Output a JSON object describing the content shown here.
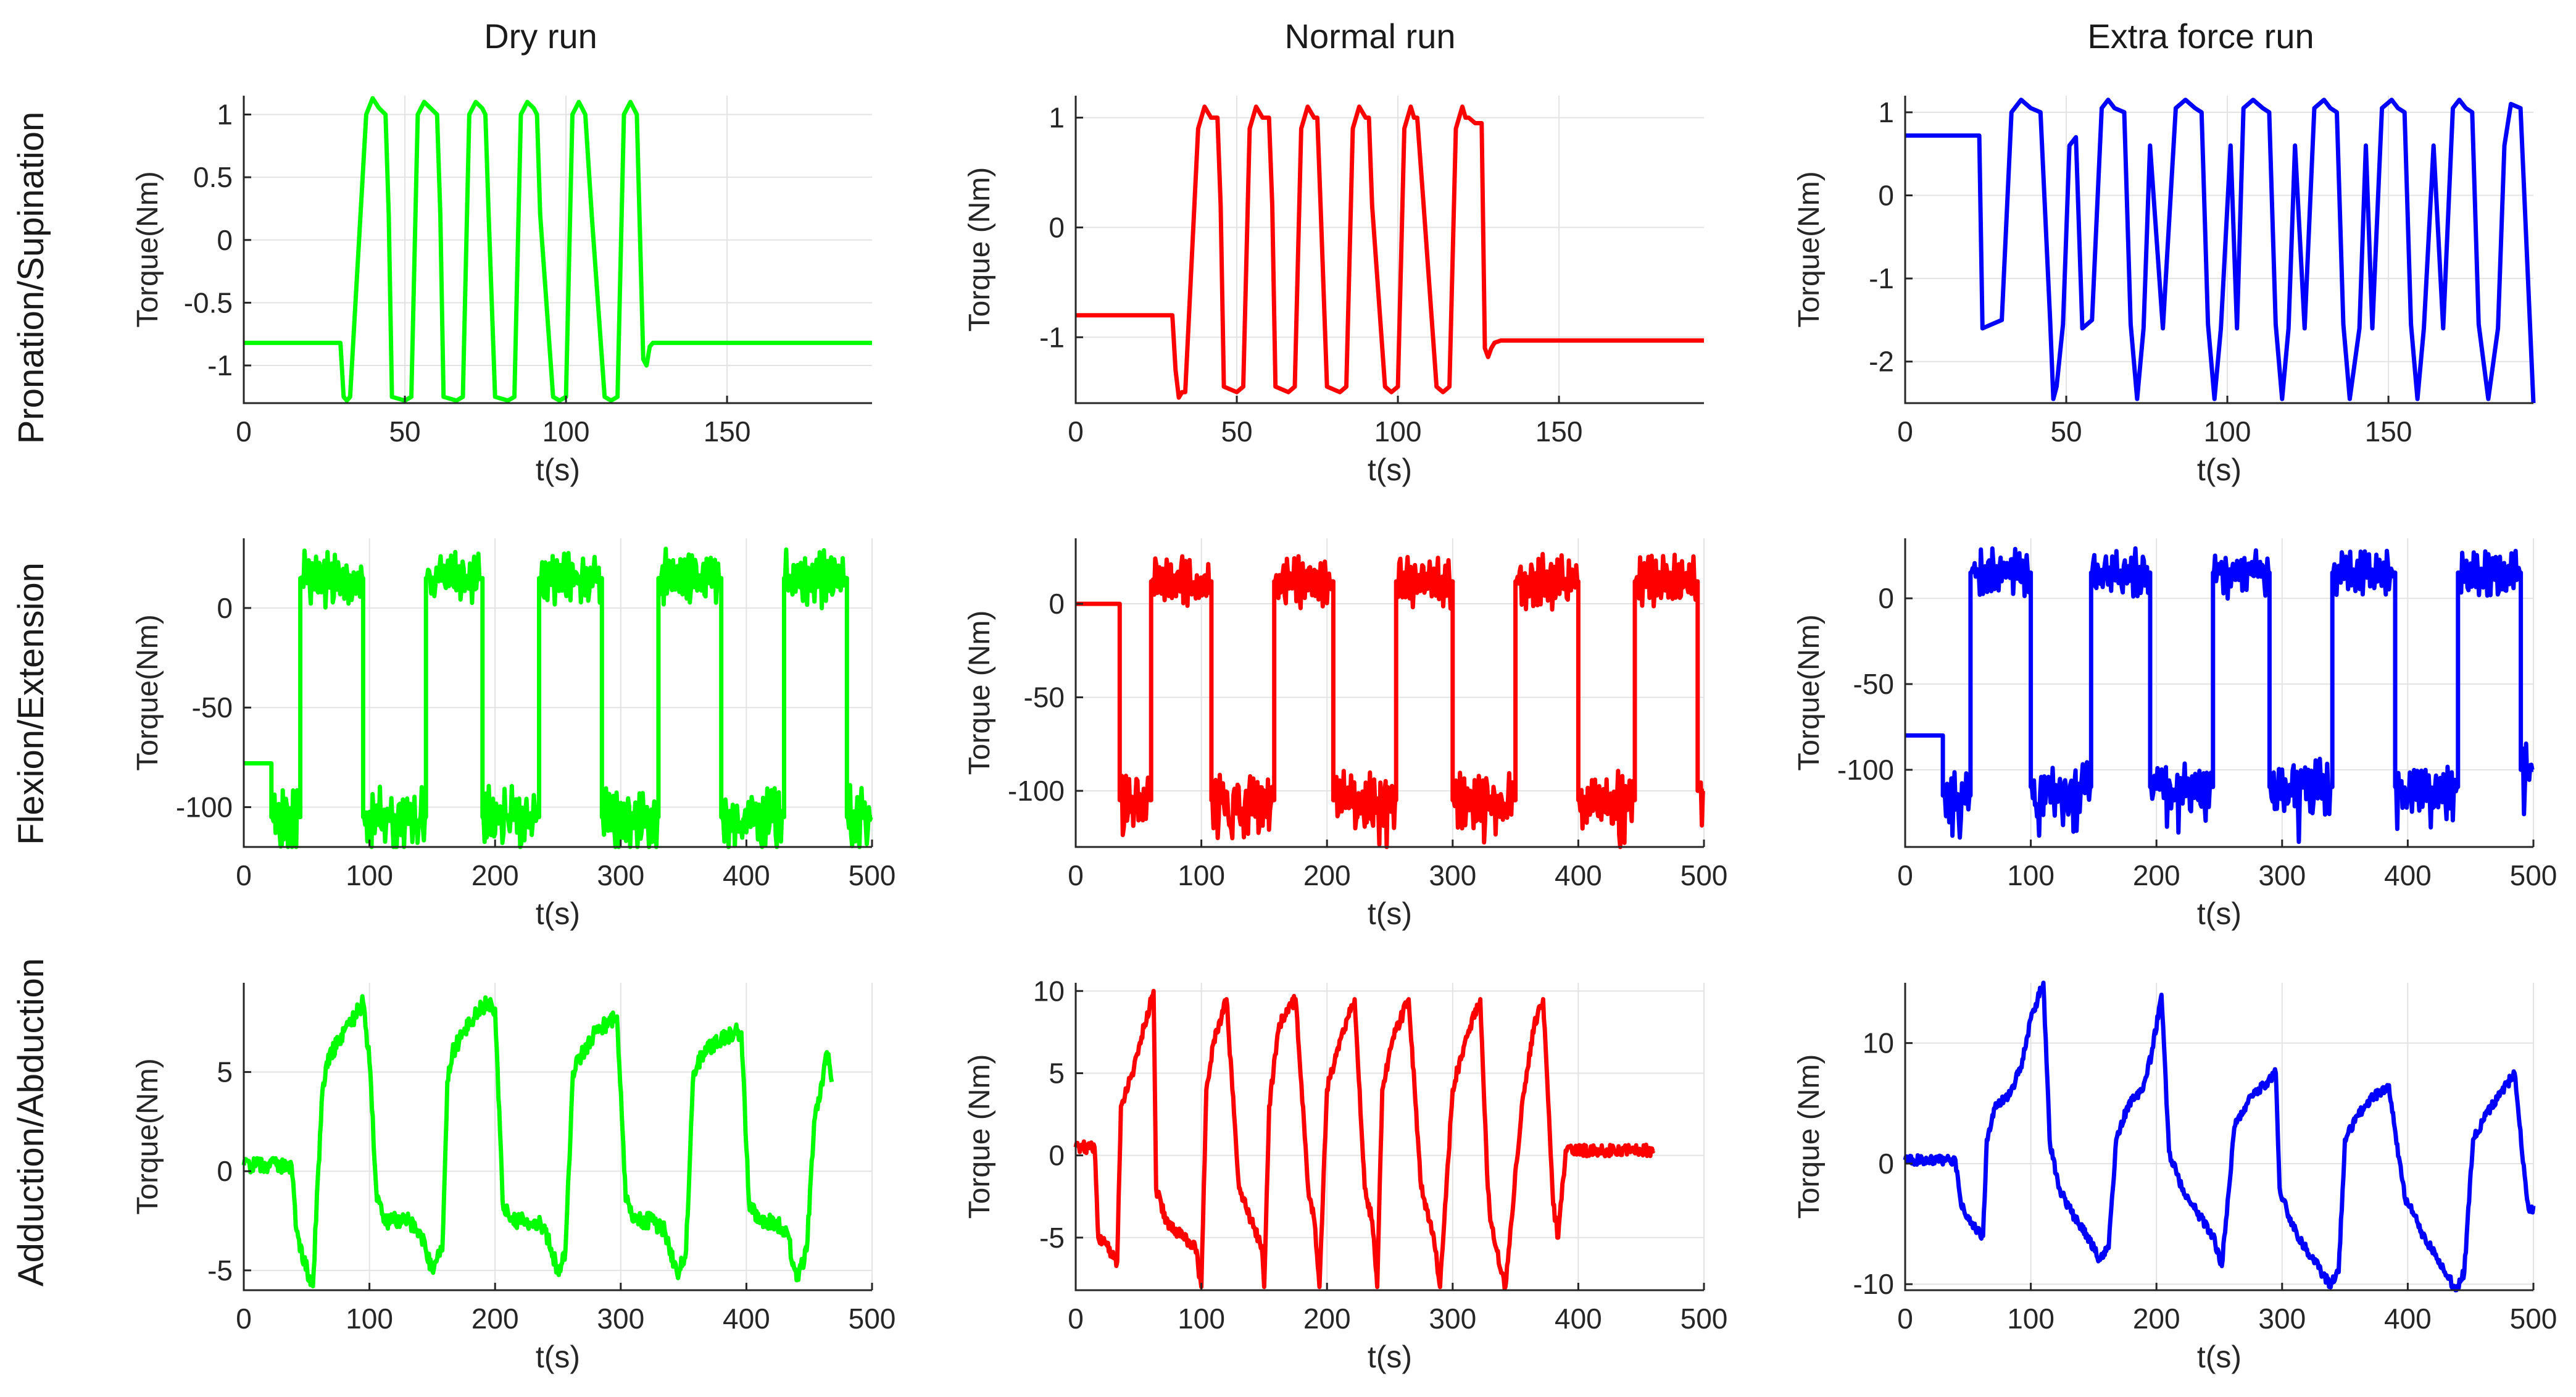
{
  "chart_data": [
    {
      "type": "line",
      "row_label": "Pronation/Supination",
      "col_label": "Dry run",
      "color": "#00ff00",
      "ylabel": "Torque(Nm)",
      "xlabel": "t(s)",
      "xlim": [
        0,
        195
      ],
      "ylim": [
        -1.3,
        1.15
      ],
      "xticks": [
        0,
        50,
        100,
        150
      ],
      "yticks": [
        1,
        0.5,
        0,
        -0.5,
        -1
      ],
      "ytick_labels": [
        "1",
        "0.5",
        "0",
        "-0.5",
        "-1"
      ],
      "x": [
        0,
        30,
        31,
        32,
        33,
        38,
        40,
        42,
        44,
        45,
        46,
        50,
        52,
        54,
        56,
        58,
        60,
        61,
        62,
        66,
        68,
        70,
        72,
        74,
        75,
        76,
        78,
        82,
        84,
        86,
        88,
        90,
        91,
        92,
        96,
        98,
        100,
        102,
        104,
        105,
        106,
        108,
        112,
        114,
        116,
        118,
        120,
        121,
        122,
        124,
        125,
        126,
        127,
        128,
        195
      ],
      "y": [
        -0.82,
        -0.82,
        -1.25,
        -1.28,
        -1.25,
        1.0,
        1.13,
        1.05,
        1.0,
        0.2,
        -1.25,
        -1.28,
        -1.25,
        1.0,
        1.1,
        1.05,
        1.0,
        0.2,
        -1.25,
        -1.28,
        -1.25,
        1.0,
        1.1,
        1.05,
        1.0,
        0.2,
        -1.25,
        -1.28,
        -1.25,
        1.0,
        1.1,
        1.05,
        1.0,
        0.2,
        -1.25,
        -1.28,
        -1.25,
        1.0,
        1.1,
        1.05,
        1.0,
        0.2,
        -1.25,
        -1.28,
        -1.25,
        1.0,
        1.1,
        1.05,
        1.0,
        -0.95,
        -1.0,
        -0.85,
        -0.82,
        -0.82,
        -0.82
      ]
    },
    {
      "type": "line",
      "row_label": "Pronation/Supination",
      "col_label": "Normal run",
      "color": "#ff0000",
      "ylabel": "Torque (Nm)",
      "xlabel": "t(s)",
      "xlim": [
        0,
        195
      ],
      "ylim": [
        -1.6,
        1.2
      ],
      "xticks": [
        0,
        50,
        100,
        150
      ],
      "yticks": [
        1,
        0,
        -1
      ],
      "ytick_labels": [
        "1",
        "0",
        "-1"
      ],
      "x": [
        0,
        30,
        31,
        32,
        33,
        34,
        38,
        40,
        42,
        44,
        45,
        46,
        50,
        52,
        54,
        56,
        58,
        60,
        61,
        62,
        66,
        68,
        70,
        72,
        74,
        75,
        76,
        78,
        82,
        84,
        86,
        88,
        90,
        91,
        92,
        96,
        98,
        100,
        102,
        104,
        105,
        106,
        108,
        112,
        114,
        116,
        118,
        120,
        121,
        122,
        124,
        126,
        127,
        128,
        129,
        130,
        132,
        135,
        195
      ],
      "y": [
        -0.8,
        -0.8,
        -1.3,
        -1.55,
        -1.5,
        -1.5,
        0.9,
        1.1,
        1.0,
        1.0,
        0.2,
        -1.45,
        -1.5,
        -1.45,
        0.9,
        1.1,
        1.0,
        1.0,
        0.2,
        -1.45,
        -1.5,
        -1.45,
        0.9,
        1.1,
        1.0,
        1.0,
        0.2,
        -1.45,
        -1.5,
        -1.45,
        0.9,
        1.1,
        1.0,
        1.0,
        0.2,
        -1.45,
        -1.5,
        -1.45,
        0.9,
        1.1,
        1.0,
        1.0,
        0.2,
        -1.45,
        -1.5,
        -1.45,
        0.9,
        1.1,
        1.0,
        1.0,
        0.95,
        0.95,
        -1.1,
        -1.18,
        -1.1,
        -1.05,
        -1.03,
        -1.03,
        -1.03
      ]
    },
    {
      "type": "line",
      "row_label": "Pronation/Supination",
      "col_label": "Extra force run",
      "color": "#0000ff",
      "ylabel": "Torque(Nm)",
      "xlabel": "t(s)",
      "xlim": [
        0,
        195
      ],
      "ylim": [
        -2.5,
        1.2
      ],
      "xticks": [
        0,
        50,
        100,
        150
      ],
      "yticks": [
        1,
        0,
        -1,
        -2
      ],
      "ytick_labels": [
        "1",
        "0",
        "-1",
        "-2"
      ],
      "x": [
        0,
        23,
        24,
        27,
        30,
        33,
        36,
        39,
        42,
        45,
        46,
        47,
        49,
        51,
        53,
        55,
        58,
        61,
        63,
        65,
        68,
        70,
        72,
        74,
        76,
        80,
        84,
        87,
        90,
        92,
        94,
        96,
        98,
        101,
        103,
        105,
        108,
        111,
        113,
        115,
        117,
        119,
        121,
        124,
        127,
        130,
        132,
        134,
        136,
        138,
        141,
        143,
        145,
        148,
        151,
        153,
        155,
        157,
        159,
        161,
        164,
        167,
        170,
        172,
        174,
        176,
        178,
        181,
        184,
        186,
        188,
        191,
        195
      ],
      "y": [
        0.72,
        0.72,
        -1.6,
        -1.55,
        -1.5,
        1.0,
        1.15,
        1.05,
        1.0,
        -1.5,
        -2.45,
        -2.3,
        -1.55,
        0.6,
        0.7,
        -1.6,
        -1.5,
        1.05,
        1.15,
        1.05,
        1.0,
        -1.55,
        -2.45,
        -1.6,
        0.6,
        -1.6,
        1.05,
        1.15,
        1.05,
        1.0,
        -1.55,
        -2.45,
        -1.6,
        0.6,
        -1.6,
        1.05,
        1.15,
        1.05,
        1.0,
        -1.55,
        -2.45,
        -1.6,
        0.6,
        -1.6,
        1.05,
        1.15,
        1.05,
        1.0,
        -1.55,
        -2.45,
        -1.6,
        0.6,
        -1.6,
        1.05,
        1.15,
        1.05,
        1.0,
        -1.55,
        -2.45,
        -1.6,
        0.6,
        -1.6,
        1.05,
        1.15,
        1.05,
        1.0,
        -1.55,
        -2.45,
        -1.6,
        0.6,
        1.1,
        1.05,
        -2.5
      ]
    },
    {
      "type": "line",
      "row_label": "Flexion/Extension",
      "col_label": "Dry run",
      "color": "#00ff00",
      "ylabel": "Torque(Nm)",
      "xlabel": "t(s)",
      "xlim": [
        0,
        500
      ],
      "ylim": [
        -120,
        35
      ],
      "xticks": [
        0,
        100,
        200,
        300,
        400,
        500
      ],
      "yticks": [
        0,
        -50,
        -100
      ],
      "ytick_labels": [
        "0",
        "-50",
        "-100"
      ],
      "segments": [
        [
          0,
          22,
          -78
        ],
        [
          22,
          45,
          -105
        ],
        [
          45,
          95,
          15
        ],
        [
          95,
          145,
          -105
        ],
        [
          145,
          190,
          15
        ],
        [
          190,
          235,
          -105
        ],
        [
          235,
          285,
          15
        ],
        [
          285,
          330,
          -105
        ],
        [
          330,
          380,
          15
        ],
        [
          380,
          430,
          -105
        ],
        [
          430,
          480,
          15
        ],
        [
          480,
          500,
          -105
        ]
      ],
      "noise": 14
    },
    {
      "type": "line",
      "row_label": "Flexion/Extension",
      "col_label": "Normal run",
      "color": "#ff0000",
      "ylabel": "Torque (Nm)",
      "xlabel": "t(s)",
      "xlim": [
        0,
        500
      ],
      "ylim": [
        -130,
        35
      ],
      "xticks": [
        0,
        100,
        200,
        300,
        400,
        500
      ],
      "yticks": [
        0,
        -50,
        -100
      ],
      "ytick_labels": [
        "0",
        "-50",
        "-100"
      ],
      "segments": [
        [
          0,
          35,
          0
        ],
        [
          35,
          60,
          -105
        ],
        [
          60,
          108,
          12
        ],
        [
          108,
          158,
          -105
        ],
        [
          158,
          205,
          12
        ],
        [
          205,
          255,
          -105
        ],
        [
          255,
          300,
          12
        ],
        [
          300,
          350,
          -105
        ],
        [
          350,
          400,
          12
        ],
        [
          400,
          445,
          -105
        ],
        [
          445,
          495,
          12
        ],
        [
          495,
          500,
          -100
        ]
      ],
      "noise": 14
    },
    {
      "type": "line",
      "row_label": "Flexion/Extension",
      "col_label": "Extra force run",
      "color": "#0000ff",
      "ylabel": "Torque(Nm)",
      "xlabel": "t(s)",
      "xlim": [
        0,
        500
      ],
      "ylim": [
        -145,
        35
      ],
      "xticks": [
        0,
        100,
        200,
        300,
        400,
        500
      ],
      "yticks": [
        0,
        -50,
        -100
      ],
      "ytick_labels": [
        "0",
        "-50",
        "-100"
      ],
      "segments": [
        [
          0,
          30,
          -80
        ],
        [
          30,
          52,
          -115
        ],
        [
          52,
          100,
          15
        ],
        [
          100,
          148,
          -110
        ],
        [
          148,
          195,
          15
        ],
        [
          195,
          245,
          -110
        ],
        [
          245,
          290,
          15
        ],
        [
          290,
          340,
          -110
        ],
        [
          340,
          390,
          15
        ],
        [
          390,
          440,
          -110
        ],
        [
          440,
          490,
          15
        ],
        [
          490,
          500,
          -100
        ]
      ],
      "noise": 14
    },
    {
      "type": "line",
      "row_label": "Adduction/Abduction",
      "col_label": "Dry run",
      "color": "#00ff00",
      "ylabel": "Torque(Nm)",
      "xlabel": "t(s)",
      "xlim": [
        0,
        500
      ],
      "ylim": [
        -6,
        9.5
      ],
      "xticks": [
        0,
        100,
        200,
        300,
        400,
        500
      ],
      "yticks": [
        5,
        0,
        -5
      ],
      "ytick_labels": [
        "5",
        "0",
        "-5"
      ],
      "x": [
        0,
        38,
        42,
        48,
        55,
        62,
        66,
        75,
        85,
        95,
        100,
        106,
        112,
        118,
        130,
        140,
        150,
        158,
        162,
        166,
        175,
        185,
        195,
        200,
        206,
        212,
        220,
        232,
        240,
        250,
        256,
        262,
        270,
        280,
        290,
        297,
        304,
        312,
        325,
        335,
        345,
        352,
        358,
        366,
        378,
        390,
        396,
        402,
        410,
        420,
        432,
        440,
        448,
        454,
        460,
        464,
        468
      ],
      "y": [
        0.3,
        0.3,
        -3,
        -4.5,
        -5.8,
        3.5,
        5.5,
        6.5,
        7.5,
        8.5,
        5.5,
        -1.5,
        -2.5,
        -2.5,
        -2.5,
        -3,
        -5,
        -4,
        4.5,
        6,
        7,
        8,
        8.5,
        8.2,
        -1.5,
        -2.5,
        -2.5,
        -2.5,
        -3,
        -5,
        -4,
        5,
        6,
        7,
        7.5,
        7.8,
        -1.5,
        -2.5,
        -2.5,
        -3,
        -5.2,
        -4,
        5,
        6,
        6.5,
        7,
        7,
        -1.5,
        -2.5,
        -2.5,
        -3,
        -5.5,
        -4,
        2.5,
        4.5,
        6,
        4.5
      ],
      "noise": 0.8
    },
    {
      "type": "line",
      "row_label": "Adduction/Abduction",
      "col_label": "Normal run",
      "color": "#ff0000",
      "ylabel": "Torque (Nm)",
      "xlabel": "t(s)",
      "xlim": [
        0,
        500
      ],
      "ylim": [
        -8.2,
        10.5
      ],
      "xticks": [
        0,
        100,
        200,
        300,
        400,
        500
      ],
      "yticks": [
        10,
        5,
        0,
        -5
      ],
      "ytick_labels": [
        "10",
        "5",
        "0",
        "-5"
      ],
      "x": [
        0,
        15,
        18,
        25,
        33,
        36,
        45,
        55,
        62,
        64,
        72,
        85,
        95,
        100,
        104,
        110,
        120,
        130,
        140,
        148,
        150,
        154,
        162,
        175,
        185,
        190,
        194,
        200,
        210,
        222,
        230,
        236,
        240,
        244,
        252,
        265,
        275,
        282,
        285,
        290,
        300,
        310,
        322,
        328,
        330,
        334,
        342,
        355,
        365,
        372,
        380,
        384,
        390,
        400,
        460
      ],
      "y": [
        0.5,
        0.5,
        -5,
        -5.5,
        -6.5,
        3,
        5,
        8,
        10,
        -2,
        -4,
        -5,
        -5.5,
        -8,
        4,
        7,
        9.5,
        -2,
        -4,
        -5.5,
        -8,
        3,
        8,
        9.5,
        -2,
        -4,
        -8,
        4,
        7,
        9.5,
        -2,
        -4,
        -8,
        4,
        7,
        9.5,
        -2,
        -4,
        -5,
        -8,
        4,
        7,
        9.5,
        -2,
        -4,
        -5.5,
        -8,
        3,
        8,
        9.5,
        -3,
        -5,
        0.3,
        0.3,
        0.3
      ],
      "noise": 0.7
    },
    {
      "type": "line",
      "row_label": "Adduction/Abduction",
      "col_label": "Extra force run",
      "color": "#0000ff",
      "ylabel": "Torque (Nm)",
      "xlabel": "t(s)",
      "xlim": [
        0,
        500
      ],
      "ylim": [
        -10.5,
        15
      ],
      "xticks": [
        0,
        100,
        200,
        300,
        400,
        500
      ],
      "yticks": [
        10,
        0,
        -10
      ],
      "ytick_labels": [
        "10",
        "0",
        "-10"
      ],
      "x": [
        0,
        40,
        44,
        52,
        62,
        65,
        72,
        82,
        92,
        100,
        110,
        115,
        122,
        132,
        145,
        155,
        162,
        168,
        178,
        188,
        196,
        204,
        210,
        220,
        232,
        245,
        252,
        262,
        272,
        285,
        295,
        298,
        304,
        312,
        325,
        338,
        345,
        350,
        360,
        372,
        385,
        395,
        398,
        404,
        412,
        425,
        438,
        445,
        452,
        462,
        475,
        485,
        495,
        498,
        500
      ],
      "y": [
        0.3,
        0.3,
        -3,
        -5,
        -6,
        2,
        5,
        5.5,
        8,
        12,
        15,
        2,
        -2,
        -4,
        -6,
        -8,
        -7,
        2,
        5,
        6,
        9,
        14,
        1,
        -2,
        -4,
        -6,
        -8.5,
        3,
        5,
        6.5,
        7.5,
        -2,
        -4,
        -6,
        -8,
        -10,
        -9,
        2,
        4,
        5.5,
        6.5,
        -1,
        -3,
        -4,
        -6,
        -8,
        -10.5,
        -9,
        2,
        4,
        6,
        7.5,
        -3,
        -4,
        -3.5
      ],
      "noise": 0.8
    }
  ],
  "column_titles": [
    "Dry run",
    "Normal run",
    "Extra force run"
  ],
  "row_titles": [
    "Pronation/Supination",
    "Flexion/Extension",
    "Adduction/Abduction"
  ]
}
